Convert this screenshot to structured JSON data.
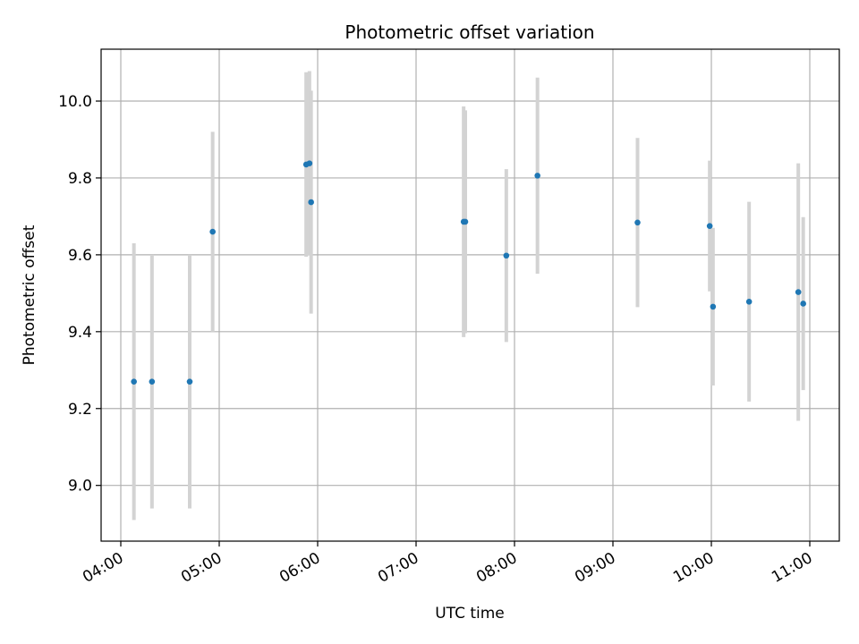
{
  "chart_data": {
    "type": "scatter",
    "title": "Photometric offset variation",
    "xlabel": "UTC time",
    "ylabel": "Photometric offset",
    "xlim": [
      "03:48",
      "11:18"
    ],
    "ylim": [
      8.855,
      10.135
    ],
    "grid": true,
    "x_ticks": [
      "04:00",
      "05:00",
      "06:00",
      "07:00",
      "08:00",
      "09:00",
      "10:00",
      "11:00"
    ],
    "y_ticks": [
      "9.0",
      "9.2",
      "9.4",
      "9.6",
      "9.8",
      "10.0"
    ],
    "series": [
      {
        "marker_color": "#1f77b4",
        "errorbar_color": "#d3d3d3",
        "points": [
          {
            "x": "04:08",
            "y": 9.27,
            "err": 0.36
          },
          {
            "x": "04:19",
            "y": 9.27,
            "err": 0.33
          },
          {
            "x": "04:42",
            "y": 9.27,
            "err": 0.33
          },
          {
            "x": "04:56",
            "y": 9.66,
            "err": 0.26
          },
          {
            "x": "05:53",
            "y": 9.835,
            "err": 0.24
          },
          {
            "x": "05:55",
            "y": 9.838,
            "err": 0.24
          },
          {
            "x": "05:56",
            "y": 9.737,
            "err": 0.29
          },
          {
            "x": "07:29",
            "y": 9.686,
            "err": 0.3
          },
          {
            "x": "07:30",
            "y": 9.686,
            "err": 0.29
          },
          {
            "x": "07:55",
            "y": 9.598,
            "err": 0.225
          },
          {
            "x": "08:14",
            "y": 9.806,
            "err": 0.255
          },
          {
            "x": "09:15",
            "y": 9.684,
            "err": 0.22
          },
          {
            "x": "09:59",
            "y": 9.675,
            "err": 0.17
          },
          {
            "x": "10:01",
            "y": 9.465,
            "err": 0.205
          },
          {
            "x": "10:23",
            "y": 9.478,
            "err": 0.26
          },
          {
            "x": "10:53",
            "y": 9.503,
            "err": 0.335
          },
          {
            "x": "10:56",
            "y": 9.473,
            "err": 0.225
          }
        ]
      }
    ]
  }
}
